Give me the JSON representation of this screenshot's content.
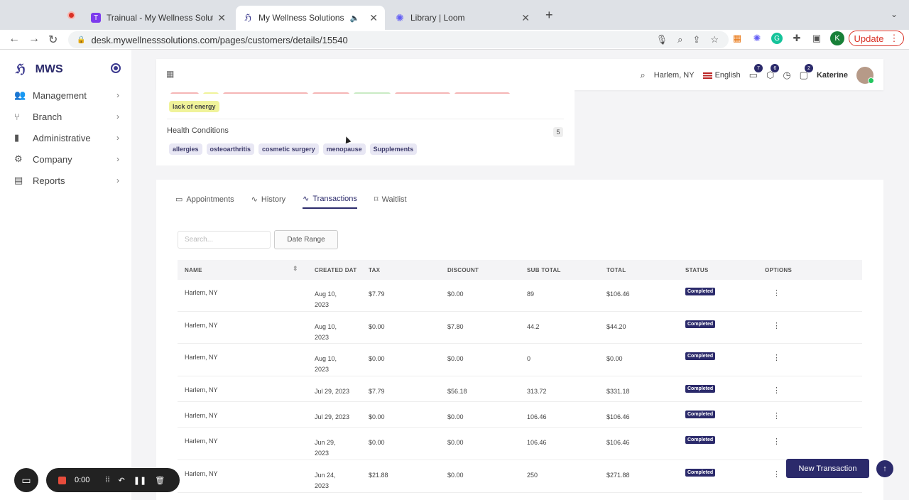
{
  "browser": {
    "tabs": [
      {
        "title": "Trainual - My Wellness Solution",
        "favicon": "T",
        "color": "#7c3aed"
      },
      {
        "title": "My Wellness Solutions",
        "favicon": "mws",
        "color": "#3c3a8f"
      },
      {
        "title": "Library | Loom",
        "favicon": "loom",
        "color": "#625df5"
      }
    ],
    "new_tab_label": "+",
    "url": "desk.mywellnesssolutions.com/pages/customers/details/15540",
    "profile_initial": "K",
    "update_label": "Update"
  },
  "sidebar": {
    "brand": "MWS",
    "items": [
      {
        "label": "Management",
        "icon": "users-icon"
      },
      {
        "label": "Branch",
        "icon": "branch-icon"
      },
      {
        "label": "Administrative",
        "icon": "bookmark-icon"
      },
      {
        "label": "Company",
        "icon": "gears-icon"
      },
      {
        "label": "Reports",
        "icon": "report-icon"
      }
    ]
  },
  "header": {
    "location": "Harlem, NY",
    "language": "English",
    "badges": {
      "box": "7",
      "cube": "6",
      "chat": "2"
    },
    "user_name": "Katerine"
  },
  "profile_card": {
    "top_chip": "lack of energy",
    "health_conditions_title": "Health Conditions",
    "health_conditions_count": "5",
    "health_conditions": [
      "allergies",
      "osteoarthritis",
      "cosmetic surgery",
      "menopause",
      "Supplements"
    ]
  },
  "tabs": [
    {
      "label": "Appointments",
      "icon": "calendar-icon"
    },
    {
      "label": "History",
      "icon": "activity-icon"
    },
    {
      "label": "Transactions",
      "icon": "activity-icon"
    },
    {
      "label": "Waitlist",
      "icon": "bookmark-icon"
    }
  ],
  "filters": {
    "search_placeholder": "Search...",
    "date_range_label": "Date Range"
  },
  "table": {
    "columns": [
      "NAME",
      "CREATED DAT",
      "TAX",
      "DISCOUNT",
      "SUB TOTAL",
      "TOTAL",
      "STATUS",
      "OPTIONS"
    ],
    "rows": [
      {
        "name": "Harlem, NY",
        "date1": "Aug 10,",
        "date2": "2023",
        "tax": "$7.79",
        "discount": "$0.00",
        "subtotal": "89",
        "total": "$106.46",
        "status": "Completed"
      },
      {
        "name": "Harlem, NY",
        "date1": "Aug 10,",
        "date2": "2023",
        "tax": "$0.00",
        "discount": "$7.80",
        "subtotal": "44.2",
        "total": "$44.20",
        "status": "Completed"
      },
      {
        "name": "Harlem, NY",
        "date1": "Aug 10,",
        "date2": "2023",
        "tax": "$0.00",
        "discount": "$0.00",
        "subtotal": "0",
        "total": "$0.00",
        "status": "Completed"
      },
      {
        "name": "Harlem, NY",
        "date1": "Jul 29, 2023",
        "date2": "",
        "tax": "$7.79",
        "discount": "$56.18",
        "subtotal": "313.72",
        "total": "$331.18",
        "status": "Completed"
      },
      {
        "name": "Harlem, NY",
        "date1": "Jul 29, 2023",
        "date2": "",
        "tax": "$0.00",
        "discount": "$0.00",
        "subtotal": "106.46",
        "total": "$106.46",
        "status": "Completed"
      },
      {
        "name": "Harlem, NY",
        "date1": "Jun 29,",
        "date2": "2023",
        "tax": "$0.00",
        "discount": "$0.00",
        "subtotal": "106.46",
        "total": "$106.46",
        "status": "Completed"
      },
      {
        "name": "Harlem, NY",
        "date1": "Jun 24,",
        "date2": "2023",
        "tax": "$21.88",
        "discount": "$0.00",
        "subtotal": "250",
        "total": "$271.88",
        "status": "Completed"
      }
    ]
  },
  "actions": {
    "new_transaction": "New Transaction"
  },
  "loom": {
    "timer": "0:00"
  }
}
